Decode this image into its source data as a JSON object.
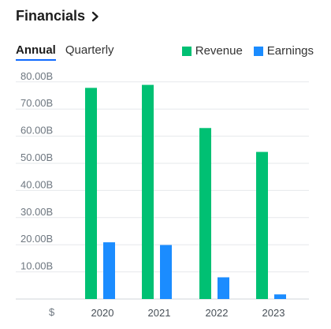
{
  "header": {
    "title": "Financials",
    "chevron_icon": "chevron-right-icon"
  },
  "tabs": [
    {
      "label": "Annual",
      "active": true
    },
    {
      "label": "Quarterly",
      "active": false
    }
  ],
  "colors": {
    "revenue": "#00c073",
    "earnings": "#1b8cff",
    "accent": "#0f69ff"
  },
  "chart_data": {
    "type": "bar",
    "categories": [
      "2020",
      "2021",
      "2022",
      "2023"
    ],
    "series": [
      {
        "name": "Revenue",
        "values": [
          77.8,
          78.9,
          63.0,
          54.2
        ]
      },
      {
        "name": "Earnings",
        "values": [
          20.9,
          19.9,
          8.0,
          1.7
        ]
      }
    ],
    "yticks": [
      "10.00B",
      "20.00B",
      "30.00B",
      "40.00B",
      "50.00B",
      "60.00B",
      "70.00B",
      "80.00B"
    ],
    "ylabel": "$",
    "ylim": [
      0,
      80
    ],
    "legend": "top-right",
    "grid": true
  }
}
